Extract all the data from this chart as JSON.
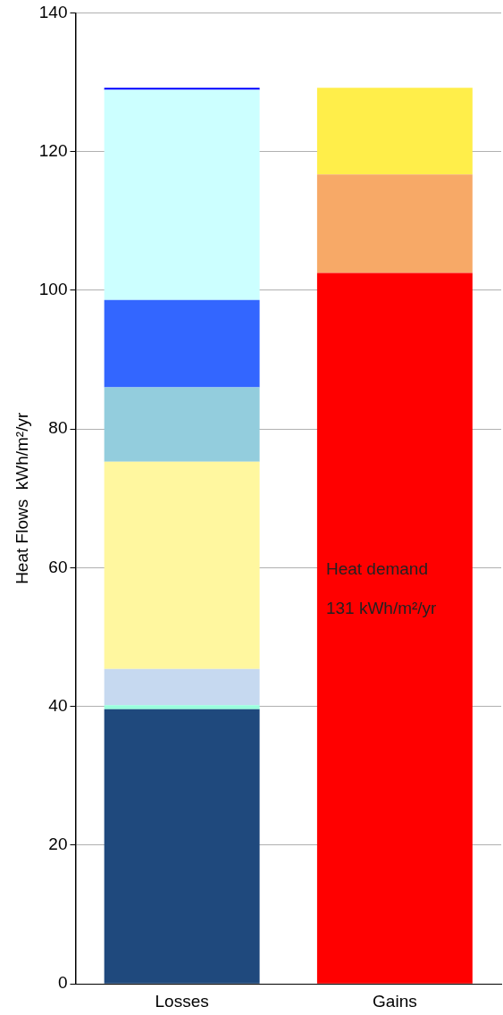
{
  "chart_data": {
    "type": "bar",
    "stacked": true,
    "ylabel": "Heat Flows  kWh/m²/yr",
    "categories": [
      "Losses",
      "Gains"
    ],
    "ylim": [
      0,
      140
    ],
    "yticks": [
      0,
      20,
      40,
      60,
      80,
      100,
      120,
      140
    ],
    "grid": "y",
    "legend": false,
    "series": [
      {
        "color": "#1f497d",
        "values": [
          39.6,
          null
        ]
      },
      {
        "color": "#99ffdd",
        "values": [
          0.6,
          null
        ]
      },
      {
        "color": "#c6d9f0",
        "values": [
          5.2,
          null
        ]
      },
      {
        "color": "#fff79f",
        "values": [
          29.9,
          null
        ]
      },
      {
        "color": "#93cddd",
        "values": [
          10.7,
          null
        ]
      },
      {
        "color": "#3366ff",
        "values": [
          12.6,
          null
        ]
      },
      {
        "color": "#ccffff",
        "values": [
          30.3,
          null
        ]
      },
      {
        "color": "#0000ff",
        "values": [
          0.3,
          null
        ]
      },
      {
        "color": "#ff0000",
        "values": [
          null,
          102.5
        ]
      },
      {
        "color": "#f7a967",
        "values": [
          null,
          14.2
        ]
      },
      {
        "color": "#ffee4a",
        "values": [
          null,
          12.5
        ]
      }
    ],
    "annotations": [
      "Heat demand",
      "131 kWh/m²/yr"
    ]
  }
}
